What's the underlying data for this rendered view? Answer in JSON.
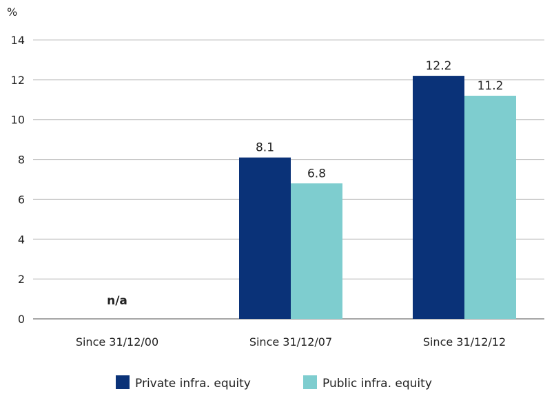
{
  "chart_data": {
    "type": "bar",
    "unit_label": "%",
    "categories": [
      "Since 31/12/00",
      "Since 31/12/07",
      "Since 31/12/12"
    ],
    "series": [
      {
        "name": "Private infra. equity",
        "color": "#0a3278",
        "values": [
          null,
          8.1,
          12.2
        ]
      },
      {
        "name": "Public infra. equity",
        "color": "#7ecdcf",
        "values": [
          null,
          6.8,
          11.2
        ]
      }
    ],
    "data_labels": {
      "Private infra. equity": [
        null,
        "8.1",
        "12.2"
      ],
      "Public infra. equity": [
        null,
        "6.8",
        "11.2"
      ]
    },
    "missing_label": "n/a",
    "yticks": [
      "0",
      "2",
      "4",
      "6",
      "8",
      "10",
      "12",
      "14"
    ],
    "ylim": [
      0,
      14
    ],
    "grid": true,
    "legend_position": "bottom"
  }
}
